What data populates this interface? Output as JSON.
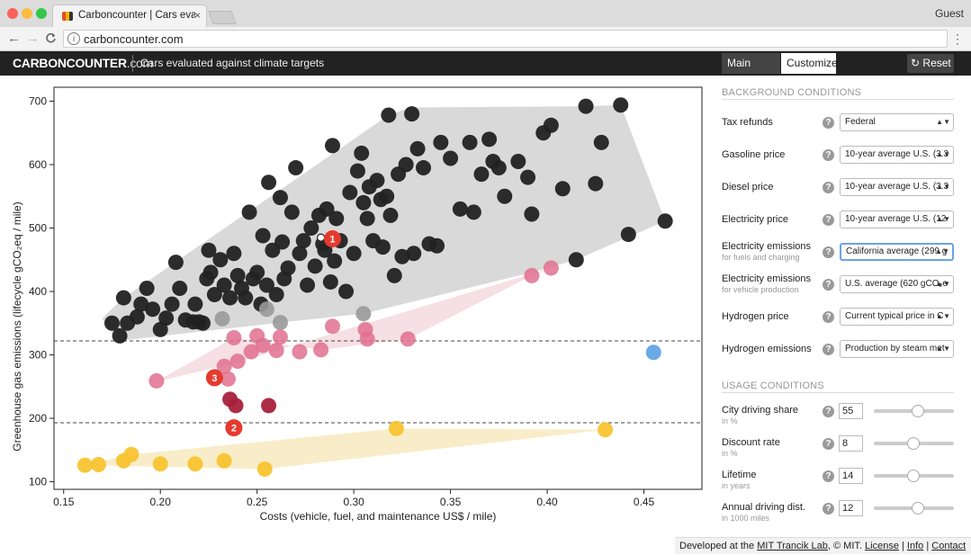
{
  "browser": {
    "tab_title": "Carboncounter | Cars evaluated",
    "tab_close": "×",
    "user": "Guest",
    "url": "carboncounter.com",
    "info_glyph": "i",
    "back_glyph": "←",
    "forward_glyph": "→",
    "reload_glyph": "C",
    "menu_glyph": "⋮"
  },
  "header": {
    "logo": "CARBONCOUNTER",
    "logo_suffix": ".com",
    "tagline": "Cars evaluated against climate targets",
    "tabs": [
      {
        "label": "Main Panel"
      },
      {
        "label": "Customize"
      }
    ],
    "reset_label": "Reset",
    "reset_glyph": "↻"
  },
  "chart_data": {
    "type": "scatter",
    "xlabel": "Costs (vehicle, fuel, and maintenance US$ / mile)",
    "ylabel": "Greenhouse gas emissions (lifecycle gCO₂eq / mile)",
    "xlim": [
      0.145,
      0.48
    ],
    "ylim": [
      88,
      722
    ],
    "xticks": [
      "0.15",
      "0.20",
      "0.25",
      "0.30",
      "0.35",
      "0.40",
      "0.45"
    ],
    "xtick_values": [
      0.15,
      0.2,
      0.25,
      0.3,
      0.35,
      0.4,
      0.45
    ],
    "yticks": [
      "100",
      "200",
      "300",
      "400",
      "500",
      "600",
      "700"
    ],
    "ytick_values": [
      100,
      200,
      300,
      400,
      500,
      600,
      700
    ],
    "target_lines": [
      322,
      193
    ],
    "colors": {
      "gasoline": "#222222",
      "gasoline_hull": "#d9d9d9",
      "hybrid": "#999999",
      "plugin": "#e0708e",
      "plugin_hull": "#f6dfe5",
      "electric_dark": "#a8213b",
      "electric_hull": "#f8edc8",
      "battery": "#f8c430",
      "fuelcell": "#6aaae6",
      "highlight": "#e63a2e"
    },
    "series": [
      {
        "key": "gasoline",
        "values": [
          [
            0.175,
            350
          ],
          [
            0.179,
            330
          ],
          [
            0.181,
            390
          ],
          [
            0.183,
            350
          ],
          [
            0.188,
            360
          ],
          [
            0.19,
            380
          ],
          [
            0.193,
            405
          ],
          [
            0.196,
            372
          ],
          [
            0.2,
            340
          ],
          [
            0.203,
            358
          ],
          [
            0.206,
            380
          ],
          [
            0.208,
            446
          ],
          [
            0.21,
            405
          ],
          [
            0.213,
            355
          ],
          [
            0.218,
            380
          ],
          [
            0.22,
            352
          ],
          [
            0.222,
            350
          ],
          [
            0.224,
            420
          ],
          [
            0.225,
            465
          ],
          [
            0.226,
            430
          ],
          [
            0.228,
            395
          ],
          [
            0.231,
            450
          ],
          [
            0.233,
            410
          ],
          [
            0.236,
            390
          ],
          [
            0.238,
            460
          ],
          [
            0.24,
            425
          ],
          [
            0.242,
            405
          ],
          [
            0.244,
            390
          ],
          [
            0.246,
            525
          ],
          [
            0.248,
            420
          ],
          [
            0.25,
            430
          ],
          [
            0.252,
            380
          ],
          [
            0.253,
            488
          ],
          [
            0.255,
            410
          ],
          [
            0.256,
            572
          ],
          [
            0.258,
            465
          ],
          [
            0.26,
            395
          ],
          [
            0.262,
            548
          ],
          [
            0.263,
            478
          ],
          [
            0.264,
            420
          ],
          [
            0.266,
            437
          ],
          [
            0.268,
            525
          ],
          [
            0.27,
            595
          ],
          [
            0.272,
            460
          ],
          [
            0.274,
            480
          ],
          [
            0.276,
            410
          ],
          [
            0.278,
            500
          ],
          [
            0.28,
            440
          ],
          [
            0.282,
            520
          ],
          [
            0.284,
            475
          ],
          [
            0.285,
            465
          ],
          [
            0.286,
            530
          ],
          [
            0.288,
            415
          ],
          [
            0.289,
            630
          ],
          [
            0.29,
            448
          ],
          [
            0.291,
            515
          ],
          [
            0.293,
            480
          ],
          [
            0.296,
            400
          ],
          [
            0.298,
            556
          ],
          [
            0.3,
            460
          ],
          [
            0.302,
            590
          ],
          [
            0.304,
            618
          ],
          [
            0.305,
            540
          ],
          [
            0.307,
            515
          ],
          [
            0.308,
            565
          ],
          [
            0.31,
            480
          ],
          [
            0.312,
            575
          ],
          [
            0.314,
            545
          ],
          [
            0.315,
            470
          ],
          [
            0.317,
            550
          ],
          [
            0.318,
            678
          ],
          [
            0.319,
            520
          ],
          [
            0.321,
            425
          ],
          [
            0.323,
            585
          ],
          [
            0.325,
            455
          ],
          [
            0.327,
            600
          ],
          [
            0.33,
            680
          ],
          [
            0.331,
            460
          ],
          [
            0.333,
            625
          ],
          [
            0.336,
            595
          ],
          [
            0.339,
            475
          ],
          [
            0.343,
            472
          ],
          [
            0.345,
            635
          ],
          [
            0.35,
            610
          ],
          [
            0.355,
            530
          ],
          [
            0.36,
            635
          ],
          [
            0.362,
            525
          ],
          [
            0.366,
            585
          ],
          [
            0.37,
            640
          ],
          [
            0.372,
            605
          ],
          [
            0.375,
            595
          ],
          [
            0.378,
            550
          ],
          [
            0.385,
            605
          ],
          [
            0.39,
            580
          ],
          [
            0.392,
            522
          ],
          [
            0.398,
            650
          ],
          [
            0.402,
            662
          ],
          [
            0.408,
            562
          ],
          [
            0.415,
            450
          ],
          [
            0.42,
            692
          ],
          [
            0.425,
            570
          ],
          [
            0.428,
            635
          ],
          [
            0.438,
            694
          ],
          [
            0.442,
            490
          ],
          [
            0.461,
            511
          ],
          [
            0.217,
            352
          ]
        ]
      },
      {
        "key": "hybrid",
        "values": [
          [
            0.232,
            357
          ],
          [
            0.255,
            372
          ],
          [
            0.262,
            351
          ],
          [
            0.305,
            365
          ]
        ]
      },
      {
        "key": "plugin",
        "values": [
          [
            0.198,
            259
          ],
          [
            0.233,
            282
          ],
          [
            0.235,
            262
          ],
          [
            0.238,
            327
          ],
          [
            0.24,
            290
          ],
          [
            0.247,
            305
          ],
          [
            0.25,
            330
          ],
          [
            0.253,
            315
          ],
          [
            0.26,
            307
          ],
          [
            0.262,
            328
          ],
          [
            0.272,
            305
          ],
          [
            0.283,
            308
          ],
          [
            0.289,
            345
          ],
          [
            0.306,
            340
          ],
          [
            0.307,
            325
          ],
          [
            0.328,
            325
          ],
          [
            0.392,
            425
          ],
          [
            0.402,
            437
          ]
        ]
      },
      {
        "key": "electric_dark",
        "values": [
          [
            0.236,
            230
          ],
          [
            0.239,
            220
          ],
          [
            0.256,
            220
          ]
        ]
      },
      {
        "key": "battery",
        "values": [
          [
            0.161,
            126
          ],
          [
            0.168,
            127
          ],
          [
            0.181,
            133
          ],
          [
            0.185,
            143
          ],
          [
            0.2,
            128
          ],
          [
            0.218,
            128
          ],
          [
            0.233,
            133
          ],
          [
            0.254,
            120
          ],
          [
            0.322,
            184
          ],
          [
            0.43,
            182
          ]
        ]
      },
      {
        "key": "fuelcell",
        "values": [
          [
            0.455,
            304
          ]
        ]
      }
    ],
    "gasoline_hull": [
      [
        0.178,
        322
      ],
      [
        0.17,
        358
      ],
      [
        0.181,
        390
      ],
      [
        0.318,
        678
      ],
      [
        0.329,
        690
      ],
      [
        0.42,
        692
      ],
      [
        0.438,
        694
      ],
      [
        0.461,
        511
      ],
      [
        0.415,
        450
      ],
      [
        0.392,
        430
      ],
      [
        0.305,
        365
      ],
      [
        0.262,
        351
      ]
    ],
    "plugin_hull": [
      [
        0.198,
        258
      ],
      [
        0.236,
        285
      ],
      [
        0.402,
        437
      ],
      [
        0.392,
        425
      ],
      [
        0.328,
        325
      ],
      [
        0.283,
        308
      ],
      [
        0.238,
        327
      ]
    ],
    "electric_hull": [
      [
        0.161,
        126
      ],
      [
        0.185,
        143
      ],
      [
        0.322,
        184
      ],
      [
        0.43,
        182
      ],
      [
        0.254,
        120
      ]
    ],
    "highlights": [
      {
        "label": "1",
        "x": 0.289,
        "y": 483
      },
      {
        "label": "2",
        "x": 0.238,
        "y": 185
      },
      {
        "label": "3",
        "x": 0.228,
        "y": 264
      }
    ],
    "marker": {
      "x": 0.283,
      "y": 485
    }
  },
  "panel": {
    "background_title": "BACKGROUND CONDITIONS",
    "usage_title": "USAGE CONDITIONS",
    "help_glyph": "?",
    "select_arrows": "▲▼",
    "background": [
      {
        "label": "Tax refunds",
        "sub": "",
        "value": "Federal"
      },
      {
        "label": "Gasoline price",
        "sub": "",
        "value": "10-year average U.S. (3.3"
      },
      {
        "label": "Diesel price",
        "sub": "",
        "value": "10-year average U.S. (3.3"
      },
      {
        "label": "Electricity price",
        "sub": "",
        "value": "10-year average U.S. (12"
      },
      {
        "label": "Electricity emissions",
        "sub": "for fuels and charging",
        "value": "California average (299 g"
      },
      {
        "label": "Electricity emissions",
        "sub": "for vehicle production",
        "value": "U.S. average (620 gCO₂e"
      },
      {
        "label": "Hydrogen price",
        "sub": "",
        "value": "Current typical price in C"
      },
      {
        "label": "Hydrogen emissions",
        "sub": "",
        "value": "Production by steam met"
      }
    ],
    "usage": [
      {
        "label": "City driving share",
        "sub": "in %",
        "value": "55",
        "level": 0.55
      },
      {
        "label": "Discount rate",
        "sub": "in %",
        "value": "8",
        "level": 0.49
      },
      {
        "label": "Lifetime",
        "sub": "in years",
        "value": "14",
        "level": 0.49
      },
      {
        "label": "Annual driving dist.",
        "sub": "in 1000 miles",
        "value": "12",
        "level": 0.55
      }
    ]
  },
  "footer": {
    "prefix": "Developed at the ",
    "lab": "MIT Trancik Lab",
    "mid": ", © MIT. ",
    "license": "License",
    "sep": " | ",
    "info": "Info",
    "contact": "Contact"
  }
}
